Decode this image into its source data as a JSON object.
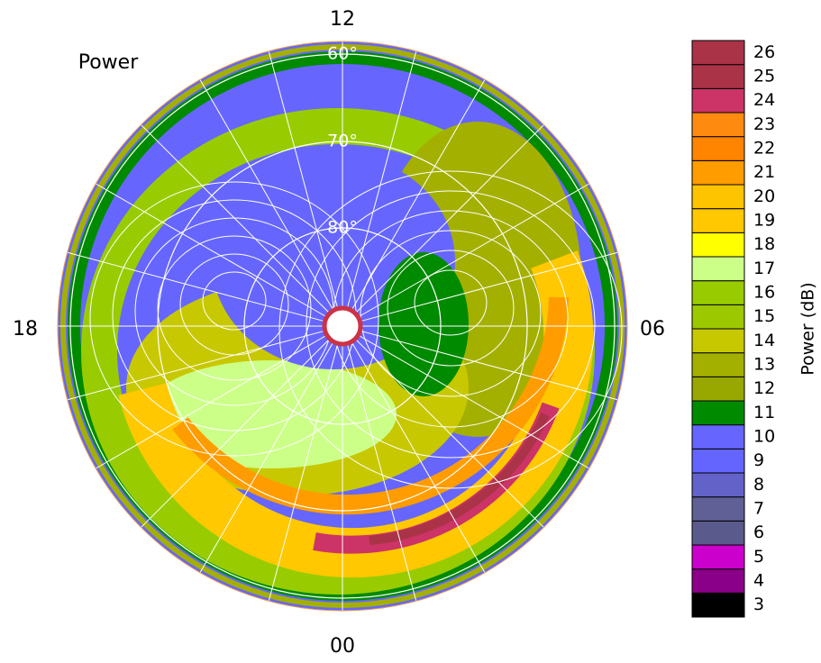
{
  "chart_data": {
    "type": "polar-map",
    "title": "Power",
    "mlt_labels": [
      "12",
      "06",
      "00",
      "18"
    ],
    "lat_labels": [
      "60°",
      "70°",
      "80°"
    ],
    "colorbar": {
      "label": "Power (dB)",
      "levels": [
        3,
        4,
        5,
        6,
        7,
        8,
        9,
        10,
        11,
        12,
        13,
        14,
        15,
        16,
        17,
        18,
        19,
        20,
        21,
        22,
        23,
        24,
        25,
        26
      ],
      "colors": [
        "#000000",
        "#8b0088",
        "#cc00cc",
        "#5a5a8c",
        "#606096",
        "#6262c8",
        "#6464ff",
        "#6666ff",
        "#008a00",
        "#98a800",
        "#a4b000",
        "#c8c800",
        "#9cc800",
        "#98cc00",
        "#ccff88",
        "#ffff00",
        "#ffc800",
        "#ffc400",
        "#ff9c00",
        "#ff8400",
        "#ff8a10",
        "#cc3366",
        "#aa3348",
        "#aa3348"
      ]
    }
  }
}
